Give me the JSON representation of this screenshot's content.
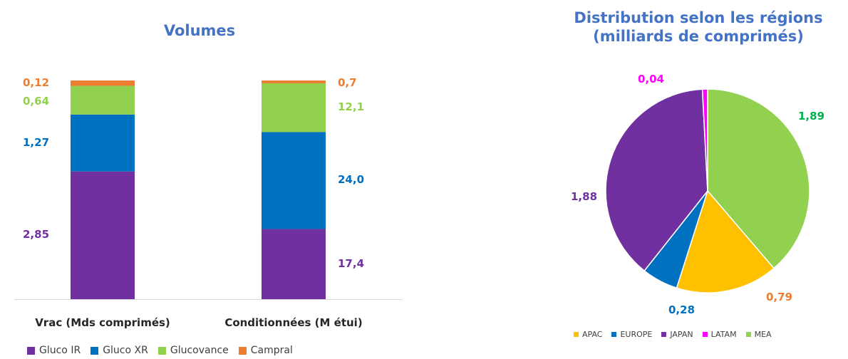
{
  "chart_data": [
    {
      "type": "bar",
      "stacked": true,
      "normalized": true,
      "title": "Volumes",
      "categories": [
        "Vrac (Mds comprimés)",
        "Conditionnées (M étui)"
      ],
      "series": [
        {
          "name": "Gluco IR",
          "values": [
            2.85,
            17.4
          ],
          "labels": [
            "2,85",
            "17,4"
          ],
          "color": "#7030A0"
        },
        {
          "name": "Gluco XR",
          "values": [
            1.27,
            24.0
          ],
          "labels": [
            "1,27",
            "24,0"
          ],
          "color": "#0070C0"
        },
        {
          "name": "Glucovance",
          "values": [
            0.64,
            12.1
          ],
          "labels": [
            "0,64",
            "12,1"
          ],
          "color": "#92D050"
        },
        {
          "name": "Campral",
          "values": [
            0.12,
            0.7
          ],
          "labels": [
            "0,12",
            "0,7"
          ],
          "color": "#ED7D31"
        }
      ],
      "legend": "bottom"
    },
    {
      "type": "pie",
      "title": "Distribution selon les régions (milliards de comprimés)",
      "title_lines": [
        "Distribution selon les régions",
        "(milliards de comprimés)"
      ],
      "slices": [
        {
          "name": "APAC",
          "value": 0.79,
          "label": "0,79",
          "color": "#FFC000",
          "label_color": "#ED7D31"
        },
        {
          "name": "EUROPE",
          "value": 0.28,
          "label": "0,28",
          "color": "#0070C0",
          "label_color": "#0070C0"
        },
        {
          "name": "JAPAN",
          "value": 1.88,
          "label": "1,88",
          "color": "#7030A0",
          "label_color": "#7030A0"
        },
        {
          "name": "LATAM",
          "value": 0.04,
          "label": "0,04",
          "color": "#FF00FF",
          "label_color": "#FF00FF"
        },
        {
          "name": "MEA",
          "value": 1.89,
          "label": "1,89",
          "color": "#92D050",
          "label_color": "#00B050"
        }
      ],
      "legend": "bottom"
    }
  ]
}
